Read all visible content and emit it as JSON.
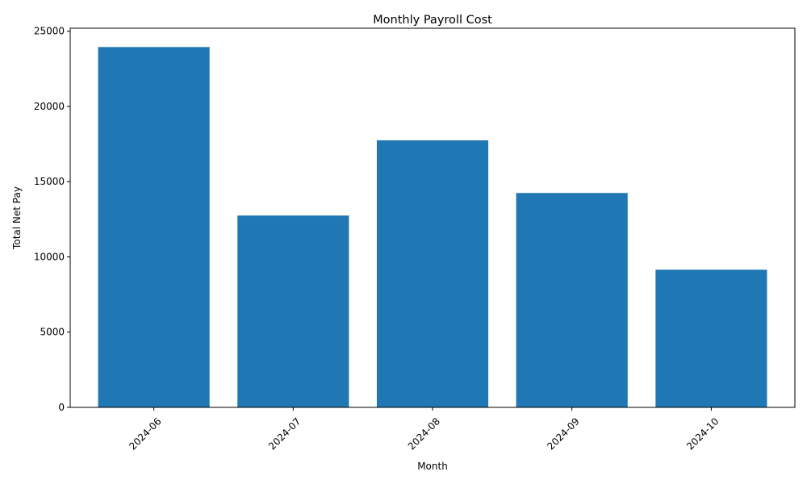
{
  "chart_data": {
    "type": "bar",
    "title": "Monthly Payroll Cost",
    "xlabel": "Month",
    "ylabel": "Total Net Pay",
    "categories": [
      "2024-06",
      "2024-07",
      "2024-08",
      "2024-09",
      "2024-10"
    ],
    "values": [
      23950,
      12750,
      17750,
      14250,
      9150
    ],
    "ylim": [
      0,
      25200
    ],
    "yticks": [
      0,
      5000,
      10000,
      15000,
      20000,
      25000
    ],
    "xtick_rotation": 45,
    "grid": false,
    "bar_color": "#1f77b4"
  }
}
